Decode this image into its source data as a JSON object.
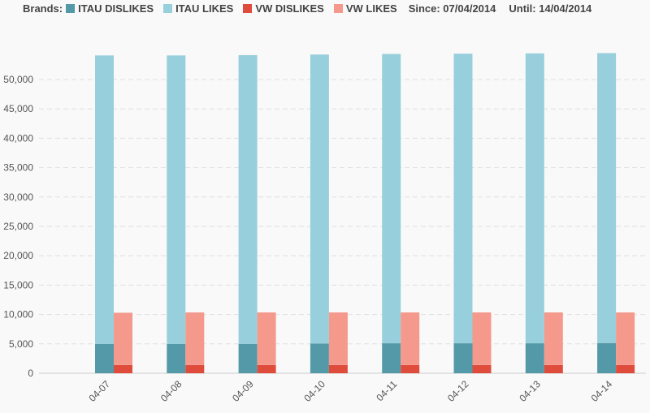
{
  "legend": {
    "label": "Brands:",
    "items": [
      {
        "name": "ITAU DISLIKES",
        "color": "#5499a8"
      },
      {
        "name": "ITAU LIKES",
        "color": "#98cfdc"
      },
      {
        "name": "VW DISLIKES",
        "color": "#df4c3c"
      },
      {
        "name": "VW LIKES",
        "color": "#f4998c"
      }
    ],
    "since": "Since: 07/04/2014",
    "until": "Until: 14/04/2014"
  },
  "chart_data": {
    "type": "bar",
    "stacked": true,
    "categories": [
      "04-07",
      "04-08",
      "04-09",
      "04-10",
      "04-11",
      "04-12",
      "04-13",
      "04-14"
    ],
    "series": [
      {
        "name": "ITAU DISLIKES",
        "stack": "ITAU",
        "color": "#5499a8",
        "values": [
          5000,
          5000,
          5000,
          5050,
          5100,
          5100,
          5100,
          5150
        ]
      },
      {
        "name": "ITAU LIKES",
        "stack": "ITAU",
        "color": "#98cfdc",
        "values": [
          49100,
          49100,
          49150,
          49200,
          49250,
          49300,
          49350,
          49350
        ]
      },
      {
        "name": "VW DISLIKES",
        "stack": "VW",
        "color": "#df4c3c",
        "values": [
          1400,
          1400,
          1400,
          1400,
          1400,
          1400,
          1400,
          1400
        ]
      },
      {
        "name": "VW LIKES",
        "stack": "VW",
        "color": "#f4998c",
        "values": [
          8900,
          8950,
          8950,
          8950,
          8950,
          8950,
          8950,
          8950
        ]
      }
    ],
    "yticks": [
      "0",
      "5,000",
      "10,000",
      "15,000",
      "20,000",
      "25,000",
      "30,000",
      "35,000",
      "40,000",
      "45,000",
      "50,000"
    ],
    "ylim": [
      0,
      55000
    ],
    "grid": true,
    "legend_position": "top-left"
  }
}
